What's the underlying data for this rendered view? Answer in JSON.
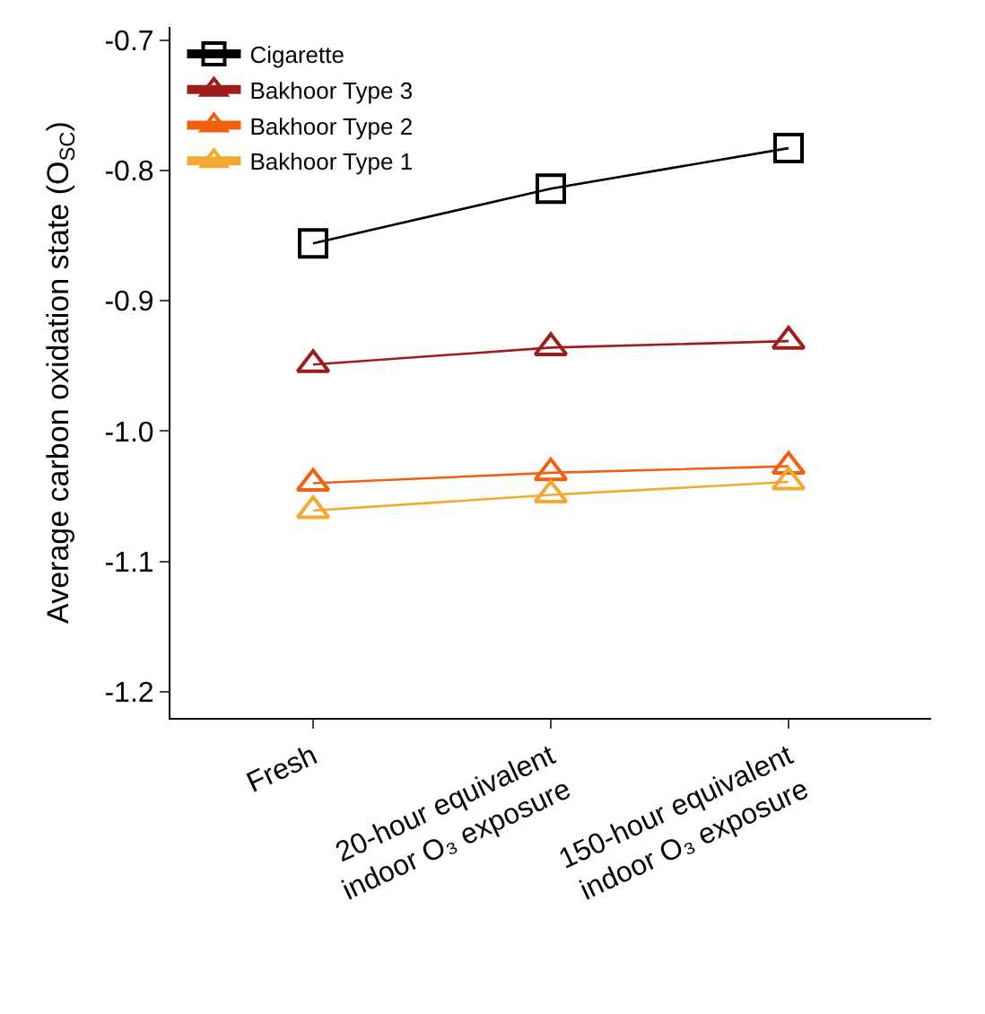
{
  "chart_data": {
    "type": "line",
    "ylabel": "Average carbon oxidation state (O$_{SC}$)",
    "categories": [
      "Fresh",
      "20-hour equivalent\nindoor O₃ exposure",
      "150-hour equivalent\nindoor O₃ exposure"
    ],
    "series": [
      {
        "name": "Cigarette",
        "color": "#000000",
        "marker": "square",
        "values": [
          -0.856,
          -0.814,
          -0.783
        ]
      },
      {
        "name": "Bakhoor Type 3",
        "color": "#a01c1c",
        "marker": "triangle",
        "values": [
          -0.949,
          -0.936,
          -0.931
        ]
      },
      {
        "name": "Bakhoor Type 2",
        "color": "#f06010",
        "marker": "triangle",
        "values": [
          -1.04,
          -1.032,
          -1.027
        ]
      },
      {
        "name": "Bakhoor Type 1",
        "color": "#f5a830",
        "marker": "triangle",
        "values": [
          -1.061,
          -1.049,
          -1.039
        ]
      }
    ],
    "ylim": [
      -1.22,
      -0.69
    ],
    "yticks": [
      -1.2,
      -1.1,
      {
        "value": -1.0,
        "label": "-1.0"
      },
      -0.9,
      -0.8,
      -0.7
    ],
    "legend": "top left"
  }
}
